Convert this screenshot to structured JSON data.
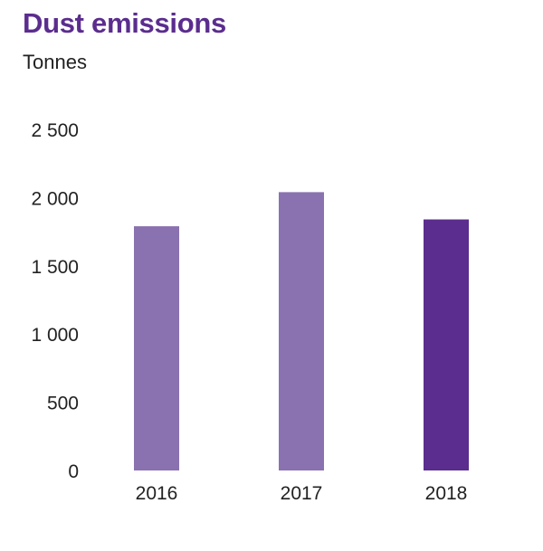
{
  "header": {
    "title": "Dust emissions",
    "subtitle": "Tonnes"
  },
  "chart_data": {
    "type": "bar",
    "title": "Dust emissions",
    "subtitle": "Tonnes",
    "xlabel": "",
    "ylabel": "",
    "categories": [
      "2016",
      "2017",
      "2018"
    ],
    "values": [
      1790,
      2040,
      1840
    ],
    "ylim": [
      0,
      2500
    ],
    "yticks": [
      0,
      500,
      1000,
      1500,
      2000,
      2500
    ],
    "ytick_labels": [
      "0",
      "500",
      "1 000",
      "1 500",
      "2 000",
      "2 500"
    ],
    "grid": false,
    "legend": "none",
    "colors": [
      "#8a72b0",
      "#8a72b0",
      "#5b2d8e"
    ]
  }
}
